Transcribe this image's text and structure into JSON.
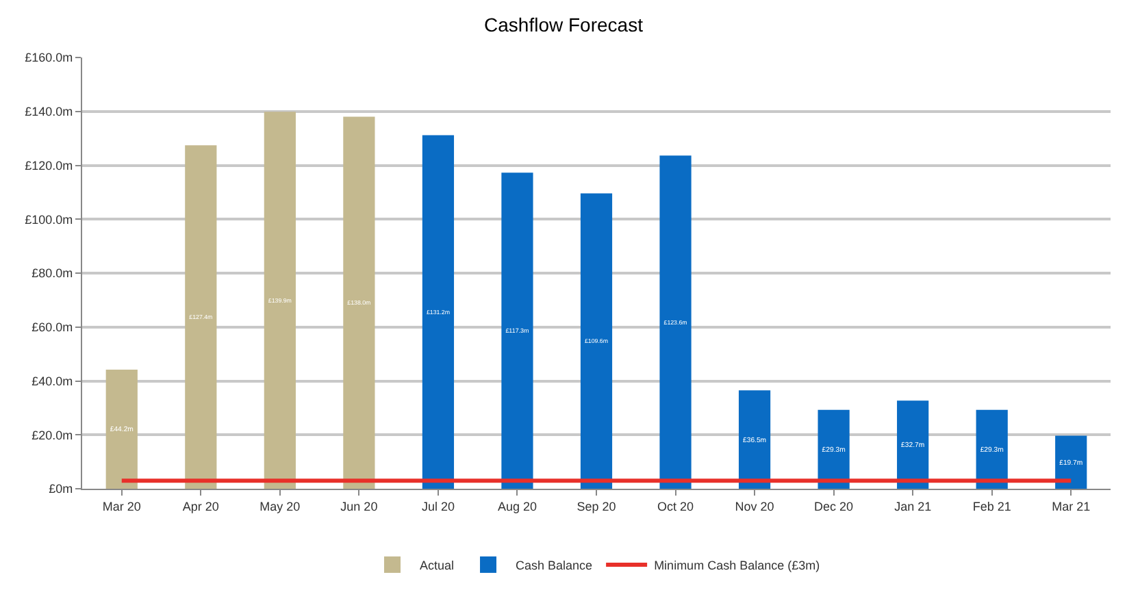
{
  "chart_data": {
    "type": "bar",
    "title": "Cashflow Forecast",
    "categories": [
      "Mar 20",
      "Apr 20",
      "May 20",
      "Jun 20",
      "Jul 20",
      "Aug 20",
      "Sep 20",
      "Oct 20",
      "Nov 20",
      "Dec 20",
      "Jan 21",
      "Feb 21",
      "Mar 21"
    ],
    "series": [
      {
        "name": "Actual",
        "color": "#c4b98f",
        "values": [
          44.2,
          127.4,
          139.9,
          138.0,
          null,
          null,
          null,
          null,
          null,
          null,
          null,
          null,
          null
        ],
        "value_labels": [
          "£44.2m",
          "£127.4m",
          "£139.9m",
          "£138.0m",
          null,
          null,
          null,
          null,
          null,
          null,
          null,
          null,
          null
        ]
      },
      {
        "name": "Cash Balance",
        "color": "#0a6cc4",
        "values": [
          null,
          null,
          null,
          null,
          131.2,
          117.3,
          109.6,
          123.6,
          36.5,
          29.3,
          32.7,
          29.3,
          19.7
        ],
        "value_labels": [
          null,
          null,
          null,
          null,
          "£131.2m",
          "£117.3m",
          "£109.6m",
          "£123.6m",
          "£36.5m",
          "£29.3m",
          "£32.7m",
          "£29.3m",
          "£19.7m"
        ]
      },
      {
        "name": "Minimum Cash Balance (£3m)",
        "type": "line",
        "color": "#e8302a",
        "values": [
          3,
          3,
          3,
          3,
          3,
          3,
          3,
          3,
          3,
          3,
          3,
          3,
          3
        ]
      }
    ],
    "ylim": [
      0,
      160
    ],
    "yticks": [
      {
        "value": 0,
        "label": "£0m"
      },
      {
        "value": 20,
        "label": "£20.0m"
      },
      {
        "value": 40,
        "label": "£40.0m"
      },
      {
        "value": 60,
        "label": "£60.0m"
      },
      {
        "value": 80,
        "label": "£80.0m"
      },
      {
        "value": 100,
        "label": "£100.0m"
      },
      {
        "value": 120,
        "label": "£120.0m"
      },
      {
        "value": 140,
        "label": "£140.0m"
      },
      {
        "value": 160,
        "label": "£160.0m"
      }
    ],
    "grid": "y",
    "legend": "bottom"
  }
}
